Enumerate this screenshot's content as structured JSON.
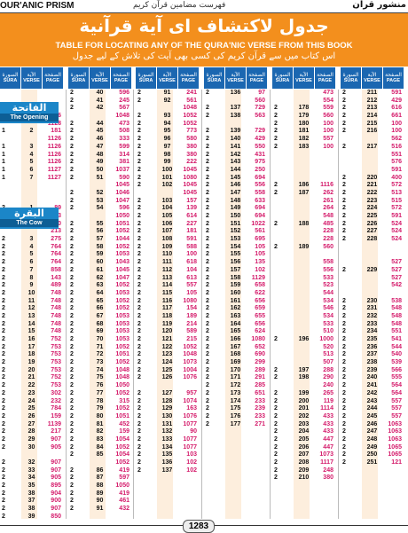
{
  "header": {
    "left_title": "OUR'ANIC PRISM",
    "center_script": "فهرست مضامين قرآن كريم",
    "right_title": "منشور قرآن"
  },
  "banner": {
    "urdu_title": "جدول لاكتشاف اى آية قرآنية",
    "english_title": "TABLE FOR LOCATING ANY OF THE QURA'NIC VERSE FROM THIS BOOK",
    "urdu_subtitle": "اس کتاب میں سے قرآن کریم کی کسی بھی آیت کی تلاش کے لیے جدول"
  },
  "col_header": {
    "sura_ur": "السورة",
    "sura_en": "SURA",
    "verse_ur": "الآية",
    "verse_en": "VERSE",
    "page_ur": "الصفحة",
    "page_en": "PAGE"
  },
  "sura_labels": {
    "fatiha_ar": "الفاتحة",
    "fatiha_en": "The Opening",
    "baqara_ar": "البقرة",
    "baqara_en": "The Cow"
  },
  "columns": [
    [
      [
        "",
        "",
        ""
      ],
      [
        "",
        "",
        ""
      ],
      [
        "",
        "",
        ""
      ],
      [
        "1",
        "1",
        "1126"
      ],
      [
        "",
        "",
        "1128"
      ],
      [
        "1",
        "2",
        "181"
      ],
      [
        "",
        "",
        "1126"
      ],
      [
        "1",
        "3",
        "1126"
      ],
      [
        "1",
        "4",
        "1126"
      ],
      [
        "1",
        "5",
        "1126"
      ],
      [
        "1",
        "6",
        "1127"
      ],
      [
        "1",
        "7",
        "1127"
      ],
      [
        "",
        "",
        ""
      ],
      [
        "",
        "",
        ""
      ],
      [
        "",
        "",
        ""
      ],
      [
        "2",
        "1",
        "89"
      ],
      [
        "",
        "",
        "213"
      ],
      [
        "2",
        "2",
        "80"
      ],
      [
        "",
        "",
        "213"
      ],
      [
        "2",
        "3",
        "275"
      ],
      [
        "2",
        "4",
        "764"
      ],
      [
        "2",
        "5",
        "764"
      ],
      [
        "2",
        "6",
        "764"
      ],
      [
        "2",
        "7",
        "858"
      ],
      [
        "2",
        "8",
        "143"
      ],
      [
        "2",
        "9",
        "489"
      ],
      [
        "2",
        "10",
        "748"
      ],
      [
        "2",
        "11",
        "748"
      ],
      [
        "2",
        "12",
        "748"
      ],
      [
        "2",
        "13",
        "748"
      ],
      [
        "2",
        "14",
        "748"
      ],
      [
        "2",
        "15",
        "748"
      ],
      [
        "2",
        "16",
        "752"
      ],
      [
        "2",
        "17",
        "753"
      ],
      [
        "2",
        "18",
        "753"
      ],
      [
        "2",
        "19",
        "753"
      ],
      [
        "2",
        "20",
        "753"
      ],
      [
        "2",
        "21",
        "752"
      ],
      [
        "2",
        "22",
        "753"
      ],
      [
        "2",
        "23",
        "302"
      ],
      [
        "2",
        "24",
        "232"
      ],
      [
        "2",
        "25",
        "784"
      ],
      [
        "2",
        "26",
        "159"
      ],
      [
        "2",
        "27",
        "1139"
      ],
      [
        "2",
        "28",
        "217"
      ],
      [
        "2",
        "29",
        "907"
      ],
      [
        "2",
        "30",
        "905"
      ],
      [
        "",
        "",
        ""
      ],
      [
        "2",
        "32",
        "907"
      ],
      [
        "2",
        "33",
        "907"
      ],
      [
        "2",
        "34",
        "905"
      ],
      [
        "2",
        "35",
        "895"
      ],
      [
        "2",
        "38",
        "904"
      ],
      [
        "2",
        "37",
        "900"
      ],
      [
        "2",
        "38",
        "907"
      ],
      [
        "2",
        "39",
        "850"
      ]
    ],
    [
      [
        "2",
        "40",
        "596"
      ],
      [
        "2",
        "41",
        "245"
      ],
      [
        "2",
        "42",
        "567"
      ],
      [
        "",
        "",
        "1048"
      ],
      [
        "2",
        "44",
        "473"
      ],
      [
        "2",
        "45",
        "508"
      ],
      [
        "2",
        "46",
        "333"
      ],
      [
        "2",
        "47",
        "599"
      ],
      [
        "2",
        "48",
        "314"
      ],
      [
        "2",
        "49",
        "381"
      ],
      [
        "2",
        "50",
        "1037"
      ],
      [
        "2",
        "51",
        "590"
      ],
      [
        "",
        "",
        "1045"
      ],
      [
        "2",
        "52",
        "1046"
      ],
      [
        "2",
        "53",
        "1047"
      ],
      [
        "2",
        "54",
        "596"
      ],
      [
        "",
        "",
        "1050"
      ],
      [
        "2",
        "55",
        "1051"
      ],
      [
        "2",
        "56",
        "1052"
      ],
      [
        "2",
        "57",
        "1044"
      ],
      [
        "2",
        "58",
        "1052"
      ],
      [
        "2",
        "59",
        "1053"
      ],
      [
        "2",
        "60",
        "1043"
      ],
      [
        "2",
        "61",
        "1045"
      ],
      [
        "2",
        "62",
        "1047"
      ],
      [
        "2",
        "63",
        "1052"
      ],
      [
        "2",
        "64",
        "1053"
      ],
      [
        "2",
        "65",
        "1052"
      ],
      [
        "2",
        "66",
        "1052"
      ],
      [
        "2",
        "67",
        "1053"
      ],
      [
        "2",
        "68",
        "1053"
      ],
      [
        "2",
        "69",
        "1053"
      ],
      [
        "2",
        "70",
        "1053"
      ],
      [
        "2",
        "71",
        "1052"
      ],
      [
        "2",
        "72",
        "1051"
      ],
      [
        "2",
        "73",
        "1052"
      ],
      [
        "2",
        "74",
        "1048"
      ],
      [
        "2",
        "75",
        "1048"
      ],
      [
        "2",
        "76",
        "1050"
      ],
      [
        "2",
        "77",
        "1052"
      ],
      [
        "2",
        "78",
        "315"
      ],
      [
        "2",
        "79",
        "1052"
      ],
      [
        "2",
        "80",
        "1051"
      ],
      [
        "2",
        "81",
        "452"
      ],
      [
        "2",
        "82",
        "159"
      ],
      [
        "2",
        "83",
        "1054"
      ],
      [
        "2",
        "84",
        "1052"
      ],
      [
        "2",
        "85",
        "1054"
      ],
      [
        "",
        "",
        "1052"
      ],
      [
        "2",
        "86",
        "419"
      ],
      [
        "2",
        "87",
        "597"
      ],
      [
        "2",
        "88",
        "1050"
      ],
      [
        "2",
        "89",
        "419"
      ],
      [
        "2",
        "90",
        "461"
      ],
      [
        "2",
        "91",
        "432"
      ]
    ],
    [
      [
        "2",
        "91",
        "241"
      ],
      [
        "2",
        "92",
        "561"
      ],
      [
        "",
        "",
        "1048"
      ],
      [
        "2",
        "93",
        "1052"
      ],
      [
        "2",
        "94",
        "1052"
      ],
      [
        "2",
        "95",
        "773"
      ],
      [
        "2",
        "96",
        "580"
      ],
      [
        "2",
        "97",
        "380"
      ],
      [
        "2",
        "98",
        "380"
      ],
      [
        "2",
        "99",
        "222"
      ],
      [
        "2",
        "100",
        "1045"
      ],
      [
        "2",
        "101",
        "1080"
      ],
      [
        "2",
        "102",
        "1045"
      ],
      [
        "",
        "",
        "1045"
      ],
      [
        "2",
        "103",
        "157"
      ],
      [
        "2",
        "104",
        "139"
      ],
      [
        "2",
        "105",
        "614"
      ],
      [
        "2",
        "106",
        "227"
      ],
      [
        "2",
        "107",
        "181"
      ],
      [
        "2",
        "108",
        "591"
      ],
      [
        "2",
        "109",
        "588"
      ],
      [
        "2",
        "110",
        "100"
      ],
      [
        "2",
        "111",
        "618"
      ],
      [
        "2",
        "112",
        "104"
      ],
      [
        "2",
        "113",
        "613"
      ],
      [
        "2",
        "114",
        "557"
      ],
      [
        "2",
        "115",
        "105"
      ],
      [
        "2",
        "116",
        "1080"
      ],
      [
        "2",
        "117",
        "154"
      ],
      [
        "2",
        "118",
        "189"
      ],
      [
        "2",
        "119",
        "214"
      ],
      [
        "2",
        "120",
        "589"
      ],
      [
        "2",
        "121",
        "215"
      ],
      [
        "2",
        "122",
        "1052"
      ],
      [
        "2",
        "123",
        "1048"
      ],
      [
        "2",
        "124",
        "1073"
      ],
      [
        "2",
        "125",
        "1004"
      ],
      [
        "2",
        "126",
        "1076"
      ],
      [
        "",
        "",
        ""
      ],
      [
        "2",
        "127",
        "957"
      ],
      [
        "2",
        "128",
        "1074"
      ],
      [
        "2",
        "129",
        "163"
      ],
      [
        "2",
        "130",
        "1076"
      ],
      [
        "2",
        "131",
        "1077"
      ],
      [
        "2",
        "132",
        "90"
      ],
      [
        "2",
        "133",
        "1077"
      ],
      [
        "2",
        "134",
        "1077"
      ],
      [
        "2",
        "135",
        "103"
      ],
      [
        "2",
        "136",
        "102"
      ],
      [
        "2",
        "137",
        "102"
      ]
    ],
    [
      [
        "2",
        "136",
        "97"
      ],
      [
        "",
        "",
        "560"
      ],
      [
        "2",
        "137",
        "729"
      ],
      [
        "2",
        "138",
        "563"
      ],
      [
        "",
        "",
        ""
      ],
      [
        "2",
        "139",
        "729"
      ],
      [
        "2",
        "140",
        "429"
      ],
      [
        "2",
        "141",
        "550"
      ],
      [
        "2",
        "142",
        "431"
      ],
      [
        "2",
        "143",
        "975"
      ],
      [
        "2",
        "144",
        "250"
      ],
      [
        "2",
        "145",
        "694"
      ],
      [
        "2",
        "146",
        "556"
      ],
      [
        "2",
        "147",
        "558"
      ],
      [
        "2",
        "148",
        "633"
      ],
      [
        "2",
        "149",
        "694"
      ],
      [
        "2",
        "150",
        "694"
      ],
      [
        "2",
        "151",
        "1022"
      ],
      [
        "2",
        "152",
        "561"
      ],
      [
        "2",
        "153",
        "695"
      ],
      [
        "2",
        "154",
        "105"
      ],
      [
        "2",
        "155",
        "105"
      ],
      [
        "2",
        "156",
        "135"
      ],
      [
        "2",
        "157",
        "102"
      ],
      [
        "2",
        "158",
        "1129"
      ],
      [
        "2",
        "159",
        "658"
      ],
      [
        "2",
        "160",
        "622"
      ],
      [
        "2",
        "161",
        "656"
      ],
      [
        "2",
        "162",
        "659"
      ],
      [
        "2",
        "163",
        "655"
      ],
      [
        "2",
        "164",
        "656"
      ],
      [
        "2",
        "165",
        "624"
      ],
      [
        "2",
        "166",
        "1080"
      ],
      [
        "2",
        "167",
        "652"
      ],
      [
        "2",
        "168",
        "690"
      ],
      [
        "2",
        "169",
        "299"
      ],
      [
        "2",
        "170",
        "289"
      ],
      [
        "2",
        "171",
        "291"
      ],
      [
        "2",
        "172",
        "285"
      ],
      [
        "2",
        "173",
        "651"
      ],
      [
        "2",
        "174",
        "233"
      ],
      [
        "2",
        "175",
        "239"
      ],
      [
        "2",
        "176",
        "233"
      ],
      [
        "2",
        "177",
        "271"
      ]
    ],
    [
      [
        "",
        "",
        "473"
      ],
      [
        "",
        "",
        "554"
      ],
      [
        "2",
        "178",
        "559"
      ],
      [
        "2",
        "179",
        "560"
      ],
      [
        "2",
        "180",
        "100"
      ],
      [
        "2",
        "181",
        "100"
      ],
      [
        "2",
        "182",
        "557"
      ],
      [
        "2",
        "183",
        "100"
      ],
      [
        "",
        "",
        ""
      ],
      [
        "",
        "",
        ""
      ],
      [
        "",
        "",
        ""
      ],
      [
        "",
        "",
        ""
      ],
      [
        "2",
        "186",
        "1116"
      ],
      [
        "2",
        "187",
        "262"
      ],
      [
        "",
        "",
        "261"
      ],
      [
        "",
        "",
        "264"
      ],
      [
        "",
        "",
        "548"
      ],
      [
        "2",
        "188",
        "485"
      ],
      [
        "",
        "",
        "228"
      ],
      [
        "",
        "",
        "228"
      ],
      [
        "2",
        "189",
        "560"
      ],
      [
        "",
        "",
        ""
      ],
      [
        "",
        "",
        "558"
      ],
      [
        "",
        "",
        "556"
      ],
      [
        "",
        "",
        "533"
      ],
      [
        "",
        "",
        "523"
      ],
      [
        "",
        "",
        "544"
      ],
      [
        "",
        "",
        "534"
      ],
      [
        "",
        "",
        "546"
      ],
      [
        "",
        "",
        "534"
      ],
      [
        "",
        "",
        "533"
      ],
      [
        "",
        "",
        "510"
      ],
      [
        "2",
        "196",
        "1000"
      ],
      [
        "",
        "",
        "520"
      ],
      [
        "",
        "",
        "513"
      ],
      [
        "",
        "",
        "507"
      ],
      [
        "2",
        "197",
        "288"
      ],
      [
        "2",
        "198",
        "290"
      ],
      [
        "",
        "",
        "240"
      ],
      [
        "2",
        "199",
        "265"
      ],
      [
        "2",
        "200",
        "119"
      ],
      [
        "2",
        "201",
        "1114"
      ],
      [
        "2",
        "202",
        "433"
      ],
      [
        "2",
        "203",
        "433"
      ],
      [
        "2",
        "204",
        "433"
      ],
      [
        "2",
        "205",
        "447"
      ],
      [
        "2",
        "206",
        "447"
      ],
      [
        "2",
        "207",
        "1073"
      ],
      [
        "2",
        "208",
        "1117"
      ],
      [
        "2",
        "209",
        "248"
      ],
      [
        "2",
        "210",
        "380"
      ]
    ],
    [
      [
        "2",
        "211",
        "591"
      ],
      [
        "2",
        "212",
        "429"
      ],
      [
        "2",
        "213",
        "616"
      ],
      [
        "2",
        "214",
        "661"
      ],
      [
        "2",
        "215",
        "100"
      ],
      [
        "2",
        "216",
        "100"
      ],
      [
        "",
        "",
        "562"
      ],
      [
        "2",
        "217",
        "516"
      ],
      [
        "",
        "",
        "551"
      ],
      [
        "",
        "",
        "576"
      ],
      [
        "",
        "",
        "591"
      ],
      [
        "2",
        "220",
        "400"
      ],
      [
        "2",
        "221",
        "572"
      ],
      [
        "2",
        "222",
        "513"
      ],
      [
        "2",
        "223",
        "515"
      ],
      [
        "2",
        "224",
        "572"
      ],
      [
        "2",
        "225",
        "591"
      ],
      [
        "2",
        "226",
        "524"
      ],
      [
        "2",
        "227",
        "524"
      ],
      [
        "2",
        "228",
        "524"
      ],
      [
        "",
        "",
        ""
      ],
      [
        "",
        "",
        ""
      ],
      [
        "",
        "",
        "527"
      ],
      [
        "2",
        "229",
        "527"
      ],
      [
        "",
        "",
        "527"
      ],
      [
        "",
        "",
        "542"
      ],
      [
        "",
        "",
        ""
      ],
      [
        "2",
        "230",
        "538"
      ],
      [
        "2",
        "231",
        "548"
      ],
      [
        "2",
        "232",
        "548"
      ],
      [
        "2",
        "233",
        "548"
      ],
      [
        "2",
        "234",
        "551"
      ],
      [
        "2",
        "235",
        "541"
      ],
      [
        "2",
        "236",
        "544"
      ],
      [
        "2",
        "237",
        "540"
      ],
      [
        "2",
        "238",
        "539"
      ],
      [
        "2",
        "239",
        "566"
      ],
      [
        "2",
        "240",
        "555"
      ],
      [
        "2",
        "241",
        "564"
      ],
      [
        "2",
        "242",
        "564"
      ],
      [
        "2",
        "243",
        "557"
      ],
      [
        "2",
        "244",
        "557"
      ],
      [
        "2",
        "245",
        "557"
      ],
      [
        "2",
        "246",
        "1063"
      ],
      [
        "2",
        "247",
        "1063"
      ],
      [
        "2",
        "248",
        "1063"
      ],
      [
        "2",
        "249",
        "1065"
      ],
      [
        "2",
        "250",
        "1065"
      ],
      [
        "2",
        "251",
        "121"
      ]
    ]
  ],
  "footer": {
    "page_number": "1283"
  }
}
